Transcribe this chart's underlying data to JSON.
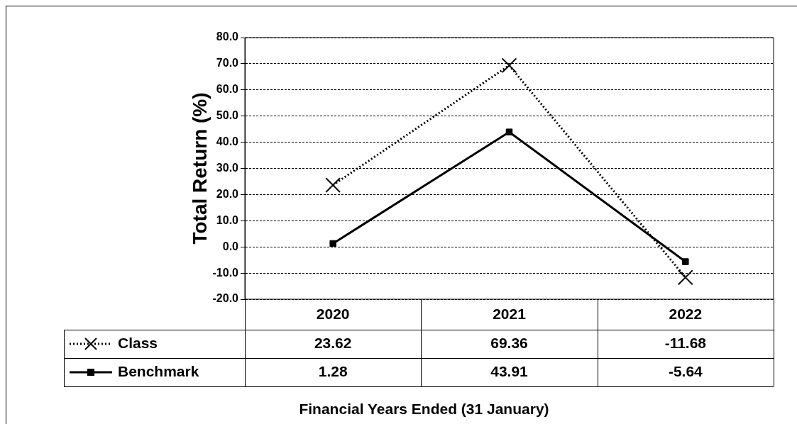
{
  "chart_data": {
    "type": "line",
    "ylabel": "Total Return (%)",
    "annotations": [
      "Financial Years Ended (31 January)"
    ],
    "categories": [
      "2020",
      "2021",
      "2022"
    ],
    "series": [
      {
        "name": "Class",
        "color": "#000000",
        "values": [
          23.62,
          69.36,
          -11.68
        ],
        "marker": "cross",
        "line_style": "dotted"
      },
      {
        "name": "Benchmark",
        "color": "#000000",
        "values": [
          1.28,
          43.91,
          -5.64
        ],
        "marker": "square",
        "line_style": "solid"
      }
    ],
    "ylim": [
      -20,
      80
    ],
    "yticks": [
      {
        "value": -20,
        "label": "-20.0"
      },
      {
        "value": -10,
        "label": "-10.0"
      },
      {
        "value": 0,
        "label": "0.0"
      },
      {
        "value": 10,
        "label": "10.0"
      },
      {
        "value": 20,
        "label": "20.0"
      },
      {
        "value": 30,
        "label": "30.0"
      },
      {
        "value": 40,
        "label": "40.0"
      },
      {
        "value": 50,
        "label": "50.0"
      },
      {
        "value": 60,
        "label": "60.0"
      },
      {
        "value": 70,
        "label": "70.0"
      },
      {
        "value": 80,
        "label": "80.0"
      }
    ],
    "grid": "y",
    "legend": "bottom left",
    "data_labels": true
  }
}
